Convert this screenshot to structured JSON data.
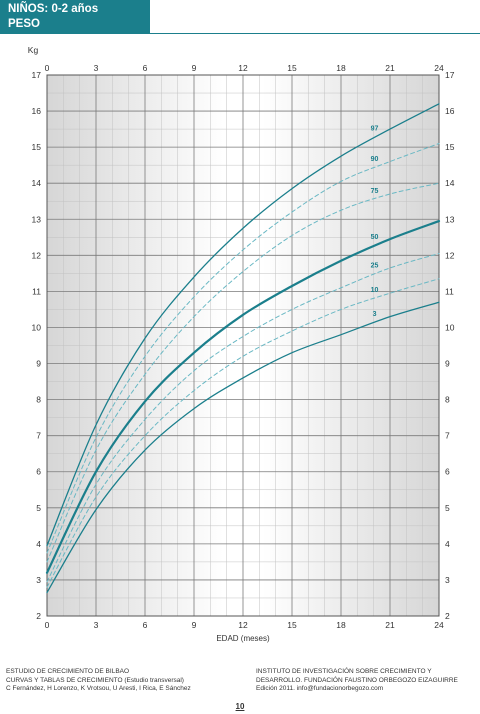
{
  "header": {
    "title": "NIÑOS: 0-2 años",
    "subtitle": "PESO"
  },
  "chart_data": {
    "type": "line",
    "ylabel": "Kg",
    "xlabel": "EDAD (meses)",
    "xlim": [
      0,
      24
    ],
    "ylim": [
      2,
      17
    ],
    "x_ticks": [
      0,
      3,
      6,
      9,
      12,
      15,
      18,
      21,
      24
    ],
    "y_ticks": [
      2,
      3,
      4,
      5,
      6,
      7,
      8,
      9,
      10,
      11,
      12,
      13,
      14,
      15,
      16,
      17
    ],
    "grid": true,
    "x": [
      0,
      3,
      6,
      9,
      12,
      15,
      18,
      21,
      24
    ],
    "series": [
      {
        "name": "97",
        "values": [
          3.95,
          7.3,
          9.7,
          11.4,
          12.75,
          13.85,
          14.75,
          15.5,
          16.2
        ]
      },
      {
        "name": "90",
        "values": [
          3.75,
          6.95,
          9.2,
          10.85,
          12.15,
          13.2,
          14.05,
          14.6,
          15.1
        ]
      },
      {
        "name": "75",
        "values": [
          3.5,
          6.6,
          8.7,
          10.3,
          11.55,
          12.55,
          13.25,
          13.7,
          14.0
        ]
      },
      {
        "name": "50",
        "values": [
          3.2,
          6.0,
          7.95,
          9.3,
          10.35,
          11.15,
          11.85,
          12.45,
          12.95
        ]
      },
      {
        "name": "25",
        "values": [
          2.95,
          5.65,
          7.45,
          8.8,
          9.75,
          10.5,
          11.1,
          11.65,
          12.05
        ]
      },
      {
        "name": "10",
        "values": [
          2.8,
          5.3,
          7.0,
          8.25,
          9.2,
          9.9,
          10.5,
          10.95,
          11.35
        ]
      },
      {
        "name": "3",
        "values": [
          2.65,
          4.95,
          6.6,
          7.75,
          8.6,
          9.3,
          9.8,
          10.3,
          10.7
        ]
      }
    ]
  },
  "colors": {
    "accent": "#1b7f8c",
    "dashed": "#6ab8c4"
  },
  "footer": {
    "left_1": "ESTUDIO DE CRECIMIENTO DE BILBAO",
    "left_2": "CURVAS Y TABLAS DE CRECIMIENTO (Estudio transversal)",
    "left_3": "C Fernández, H Lorenzo, K Vrotsou, U Aresti, I Rica, E Sánchez",
    "right_1": "INSTITUTO DE INVESTIGACIÓN SOBRE CRECIMIENTO Y",
    "right_2": "DESARROLLO. FUNDACIÓN FAUSTINO ORBEGOZO EIZAGUIRRE",
    "right_3": "Edición 2011. info@fundacionorbegozo.com"
  },
  "page_number": "10"
}
